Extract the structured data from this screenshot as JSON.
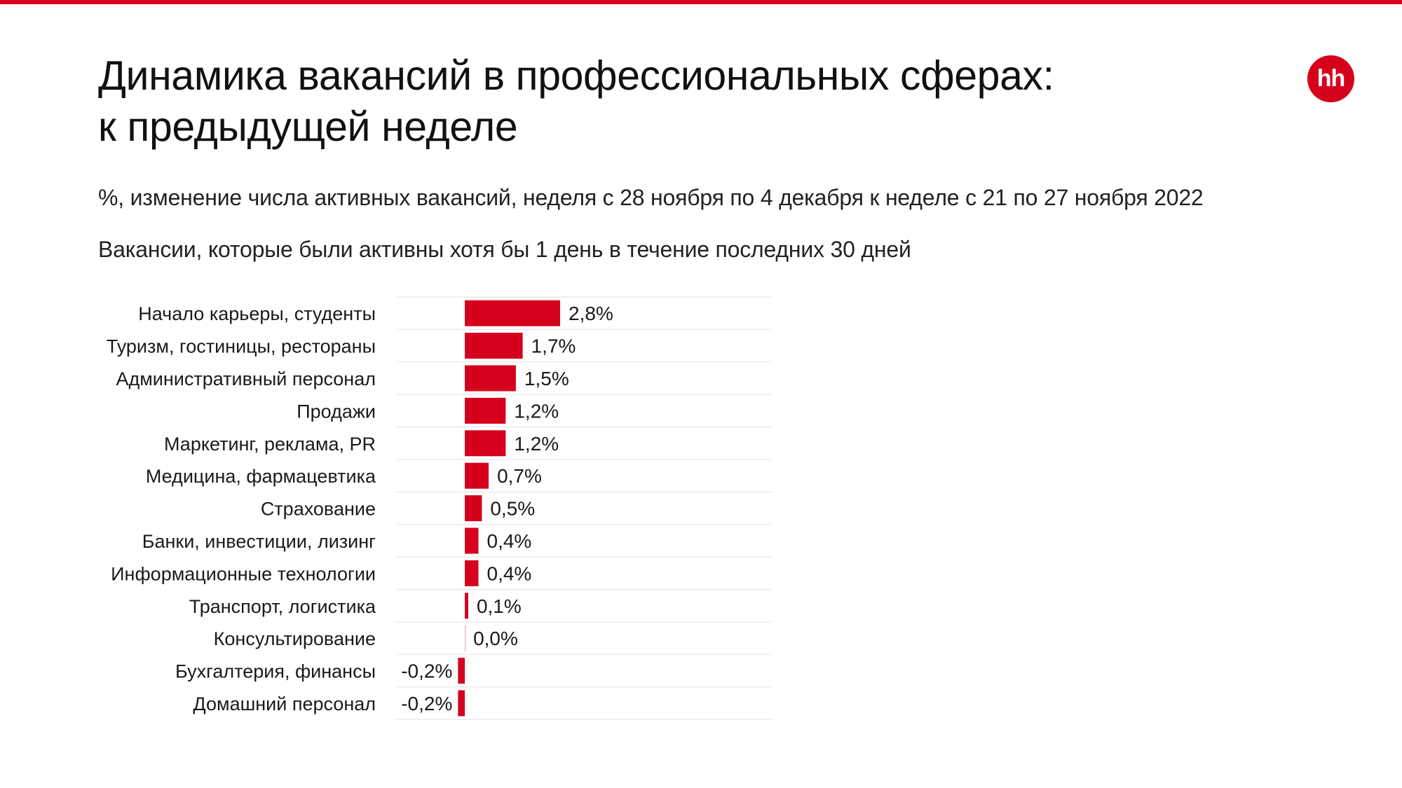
{
  "header": {
    "title_line1": "Динамика вакансий в профессиональных сферах:",
    "title_line2": "к предыдущей неделе",
    "subtitle": "%, изменение числа активных вакансий, неделя с 28 ноября по 4 декабря к неделе с 21 по 27 ноября 2022",
    "note": "Вакансии, которые были активны хотя бы 1 день в течение последних 30 дней",
    "logo_text": "hh"
  },
  "colors": {
    "accent": "#d6001c",
    "text": "#1a1a1a",
    "gridline": "#e6e6e6"
  },
  "chart_data": {
    "type": "bar",
    "orientation": "horizontal",
    "categories": [
      "Начало карьеры, студенты",
      "Туризм, гостиницы, рестораны",
      "Административный персонал",
      "Продажи",
      "Маркетинг, реклама, PR",
      "Медицина, фармацевтика",
      "Страхование",
      "Банки, инвестиции, лизинг",
      "Информационные технологии",
      "Транспорт, логистика",
      "Консультирование",
      "Бухгалтерия, финансы",
      "Домашний персонал"
    ],
    "values": [
      2.8,
      1.7,
      1.5,
      1.2,
      1.2,
      0.7,
      0.5,
      0.4,
      0.4,
      0.1,
      0.0,
      -0.2,
      -0.2
    ],
    "labels": [
      "2,8%",
      "1,7%",
      "1,5%",
      "1,2%",
      "1,2%",
      "0,7%",
      "0,5%",
      "0,4%",
      "0,4%",
      "0,1%",
      "0,0%",
      "-0,2%",
      "-0,2%"
    ],
    "unit": "%",
    "xlim": [
      -2.0,
      9.0
    ],
    "grid": "horizontal separators",
    "legend": "none"
  }
}
